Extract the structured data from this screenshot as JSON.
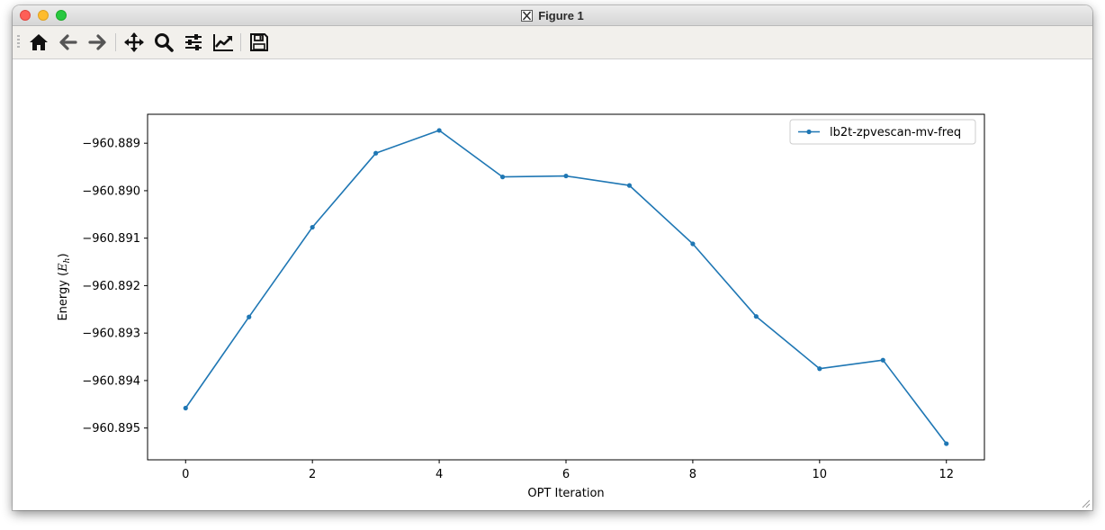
{
  "window": {
    "title": "Figure 1"
  },
  "toolbar": {
    "buttons": [
      {
        "name": "home",
        "icon": "home-icon"
      },
      {
        "name": "back",
        "icon": "arrow-left-icon"
      },
      {
        "name": "forward",
        "icon": "arrow-right-icon"
      },
      {
        "name": "pan",
        "icon": "move-icon"
      },
      {
        "name": "zoom",
        "icon": "magnifier-icon"
      },
      {
        "name": "configure-subplots",
        "icon": "sliders-icon"
      },
      {
        "name": "edit-axis",
        "icon": "line-chart-icon"
      },
      {
        "name": "save",
        "icon": "floppy-disk-icon"
      }
    ]
  },
  "chart_data": {
    "type": "line",
    "title": "",
    "xlabel": "OPT Iteration",
    "ylabel_prefix": "Energy (",
    "ylabel_symbol": "E",
    "ylabel_sub": "h",
    "ylabel_suffix": ")",
    "x": [
      0,
      1,
      2,
      3,
      4,
      5,
      6,
      7,
      8,
      9,
      10,
      11,
      12
    ],
    "series": [
      {
        "name": "lb2t-zpvescan-mv-freq",
        "color": "#1f77b4",
        "marker": "circle",
        "values": [
          -960.89458,
          -960.89266,
          -960.89077,
          -960.88921,
          -960.88873,
          -960.88971,
          -960.88969,
          -960.88989,
          -960.89112,
          -960.89265,
          -960.89375,
          -960.89357,
          -960.89533
        ]
      }
    ],
    "xlim": [
      -0.6,
      12.6
    ],
    "ylim": [
      -960.89567,
      -960.88839
    ],
    "xticks": [
      0,
      2,
      4,
      6,
      8,
      10,
      12
    ],
    "xtick_labels": [
      "0",
      "2",
      "4",
      "6",
      "8",
      "10",
      "12"
    ],
    "yticks": [
      -960.889,
      -960.89,
      -960.891,
      -960.892,
      -960.893,
      -960.894,
      -960.895
    ],
    "ytick_labels": [
      "−960.889",
      "−960.890",
      "−960.891",
      "−960.892",
      "−960.893",
      "−960.894",
      "−960.895"
    ],
    "grid": false,
    "legend_position": "top-right"
  }
}
